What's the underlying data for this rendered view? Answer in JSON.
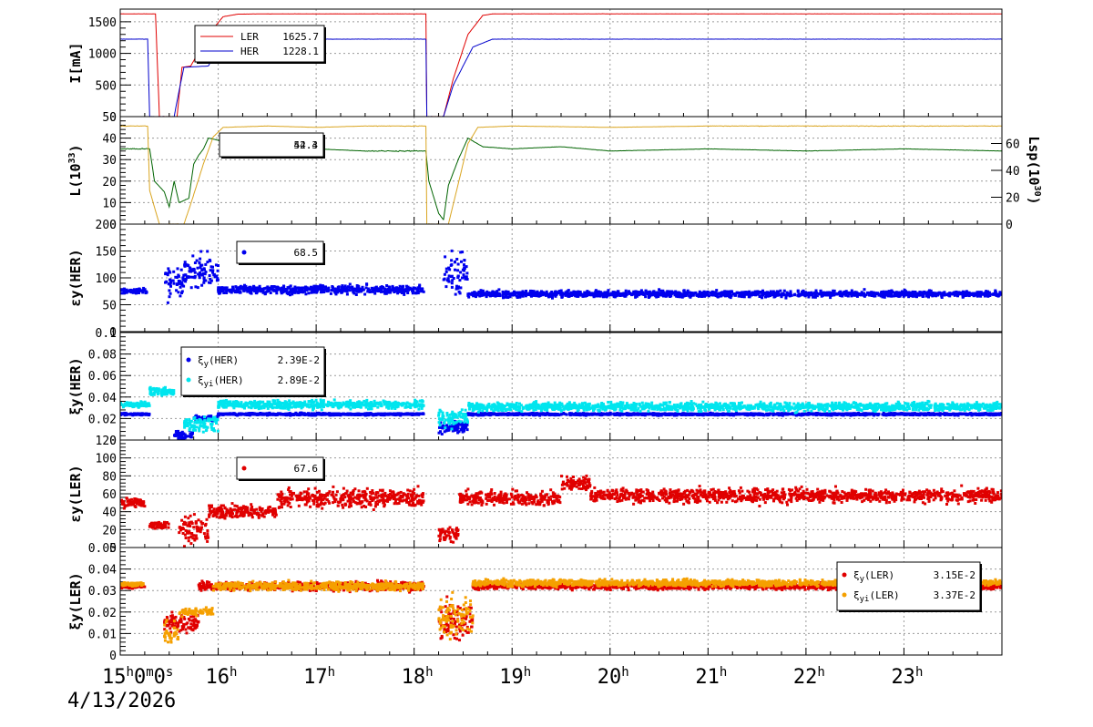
{
  "x_axis": {
    "start_label": "15h0m0s",
    "date_label": "4/13/2026",
    "hour_labels": [
      "16h",
      "17h",
      "18h",
      "19h",
      "20h",
      "21h",
      "22h",
      "23h"
    ]
  },
  "chart_data": [
    {
      "type": "line",
      "ylabel": "I[mA]",
      "ylim": [
        0,
        1700
      ],
      "yticks": [
        "0",
        "500",
        "1000",
        "1500"
      ],
      "grid": true,
      "legend": [
        {
          "name": "LER",
          "value": "1625.7",
          "color": "#e00000"
        },
        {
          "name": "HER",
          "value": "1228.1",
          "color": "#0000cc"
        }
      ],
      "series": [
        {
          "name": "LER",
          "color": "#e00000",
          "points": [
            [
              15.0,
              1625
            ],
            [
              15.3,
              1625
            ],
            [
              15.36,
              1625
            ],
            [
              15.4,
              0
            ],
            [
              15.58,
              0
            ],
            [
              15.63,
              780
            ],
            [
              15.72,
              800
            ],
            [
              15.9,
              1300
            ],
            [
              16.05,
              1580
            ],
            [
              16.2,
              1620
            ],
            [
              16.5,
              1625
            ],
            [
              17.0,
              1625
            ],
            [
              18.0,
              1625
            ],
            [
              18.12,
              1625
            ],
            [
              18.13,
              0
            ],
            [
              18.3,
              0
            ],
            [
              18.4,
              600
            ],
            [
              18.55,
              1300
            ],
            [
              18.7,
              1600
            ],
            [
              18.8,
              1625
            ],
            [
              24.0,
              1625
            ]
          ]
        },
        {
          "name": "HER",
          "color": "#0000cc",
          "points": [
            [
              15.0,
              1225
            ],
            [
              15.28,
              1225
            ],
            [
              15.3,
              0
            ],
            [
              15.55,
              0
            ],
            [
              15.6,
              400
            ],
            [
              15.65,
              780
            ],
            [
              15.9,
              800
            ],
            [
              16.0,
              1100
            ],
            [
              16.1,
              1200
            ],
            [
              16.3,
              1225
            ],
            [
              18.12,
              1225
            ],
            [
              18.13,
              0
            ],
            [
              18.3,
              0
            ],
            [
              18.4,
              500
            ],
            [
              18.6,
              1100
            ],
            [
              18.8,
              1225
            ],
            [
              24.0,
              1225
            ]
          ]
        }
      ]
    },
    {
      "type": "line",
      "ylabel": "L(10^33)",
      "ylabel_right": "Lsp(10^30)",
      "ylim": [
        0,
        50
      ],
      "ylim_right": [
        0,
        80
      ],
      "yticks": [
        "0",
        "10",
        "20",
        "30",
        "40",
        "50"
      ],
      "yticks_right": [
        "0",
        "20",
        "40",
        "60"
      ],
      "grid": true,
      "legend_value": "52.3",
      "legend_value_overlap": "44.4",
      "series": [
        {
          "name": "L",
          "color": "#006400",
          "axis": "left",
          "points": [
            [
              15.0,
              35
            ],
            [
              15.3,
              35
            ],
            [
              15.35,
              20
            ],
            [
              15.45,
              15
            ],
            [
              15.5,
              8
            ],
            [
              15.55,
              20
            ],
            [
              15.6,
              10
            ],
            [
              15.7,
              12
            ],
            [
              15.75,
              28
            ],
            [
              15.8,
              32
            ],
            [
              15.85,
              35
            ],
            [
              15.9,
              40
            ],
            [
              16.1,
              38
            ],
            [
              16.5,
              35
            ],
            [
              17.0,
              35
            ],
            [
              17.5,
              34
            ],
            [
              18.0,
              34
            ],
            [
              18.12,
              34
            ],
            [
              18.15,
              20
            ],
            [
              18.25,
              5
            ],
            [
              18.3,
              2
            ],
            [
              18.35,
              18
            ],
            [
              18.45,
              30
            ],
            [
              18.55,
              40
            ],
            [
              18.7,
              36
            ],
            [
              19.0,
              35
            ],
            [
              19.5,
              36
            ],
            [
              20.0,
              34
            ],
            [
              21.0,
              35
            ],
            [
              22.0,
              34
            ],
            [
              23.0,
              35
            ],
            [
              24.0,
              34
            ]
          ]
        },
        {
          "name": "Lsp",
          "color": "#daa520",
          "axis": "right",
          "points": [
            [
              15.0,
              73
            ],
            [
              15.28,
              73
            ],
            [
              15.3,
              25
            ],
            [
              15.4,
              0
            ],
            [
              15.65,
              0
            ],
            [
              15.72,
              15
            ],
            [
              15.85,
              45
            ],
            [
              15.95,
              65
            ],
            [
              16.05,
              72
            ],
            [
              16.5,
              73
            ],
            [
              17.0,
              72
            ],
            [
              17.5,
              73
            ],
            [
              18.0,
              73
            ],
            [
              18.12,
              73
            ],
            [
              18.13,
              0
            ],
            [
              18.35,
              0
            ],
            [
              18.45,
              30
            ],
            [
              18.55,
              60
            ],
            [
              18.65,
              72
            ],
            [
              19.0,
              73
            ],
            [
              20.0,
              72
            ],
            [
              21.0,
              73
            ],
            [
              22.0,
              73
            ],
            [
              23.0,
              73
            ],
            [
              24.0,
              73
            ]
          ]
        }
      ]
    },
    {
      "type": "scatter",
      "ylabel": "εy(HER)",
      "ylim": [
        0,
        200
      ],
      "yticks": [
        "0",
        "50",
        "100",
        "150",
        "200"
      ],
      "grid": true,
      "legend": [
        {
          "name": "",
          "value": "68.5",
          "color": "#0000ee"
        }
      ],
      "series": [
        {
          "name": "εy(HER)",
          "color": "#0000ee",
          "segments": [
            {
              "x": [
                15.0,
                15.28
              ],
              "y": 75,
              "noise": 5
            },
            {
              "x": [
                15.45,
                15.65
              ],
              "y": 90,
              "noise": 30
            },
            {
              "x": [
                15.65,
                16.0
              ],
              "y": 110,
              "noise": 30
            },
            {
              "x": [
                16.0,
                18.1
              ],
              "y": 78,
              "noise": 8
            },
            {
              "x": [
                18.3,
                18.55
              ],
              "y": 110,
              "noise": 40
            },
            {
              "x": [
                18.55,
                24.0
              ],
              "y": 70,
              "noise": 6
            }
          ]
        }
      ]
    },
    {
      "type": "scatter",
      "ylabel": "ξy(HER)",
      "ylim": [
        0,
        0.1
      ],
      "yticks": [
        "0",
        "0.02",
        "0.04",
        "0.06",
        "0.08",
        "0.1"
      ],
      "grid": true,
      "legend": [
        {
          "name": "ξy(HER)",
          "value": "2.39E-2",
          "color": "#0000ee"
        },
        {
          "name": "ξyi(HER)",
          "value": "2.89E-2",
          "color": "#00e5ee"
        }
      ],
      "series": [
        {
          "name": "ξy(HER)",
          "color": "#0000ee",
          "segments": [
            {
              "x": [
                15.0,
                15.3
              ],
              "y": 0.024,
              "noise": 0.001
            },
            {
              "x": [
                15.55,
                15.75
              ],
              "y": 0.005,
              "noise": 0.004
            },
            {
              "x": [
                15.75,
                16.0
              ],
              "y": 0.02,
              "noise": 0.003
            },
            {
              "x": [
                16.0,
                18.1
              ],
              "y": 0.024,
              "noise": 0.001
            },
            {
              "x": [
                18.25,
                18.55
              ],
              "y": 0.012,
              "noise": 0.006
            },
            {
              "x": [
                18.55,
                24.0
              ],
              "y": 0.024,
              "noise": 0.001
            }
          ]
        },
        {
          "name": "ξyi(HER)",
          "color": "#00e5ee",
          "segments": [
            {
              "x": [
                15.0,
                15.3
              ],
              "y": 0.033,
              "noise": 0.003
            },
            {
              "x": [
                15.3,
                15.55
              ],
              "y": 0.045,
              "noise": 0.004
            },
            {
              "x": [
                15.65,
                16.0
              ],
              "y": 0.015,
              "noise": 0.008
            },
            {
              "x": [
                16.0,
                18.1
              ],
              "y": 0.033,
              "noise": 0.004
            },
            {
              "x": [
                18.25,
                18.55
              ],
              "y": 0.02,
              "noise": 0.01
            },
            {
              "x": [
                18.55,
                24.0
              ],
              "y": 0.031,
              "noise": 0.004
            }
          ]
        }
      ]
    },
    {
      "type": "scatter",
      "ylabel": "εy(LER)",
      "ylim": [
        0,
        120
      ],
      "yticks": [
        "0",
        "20",
        "40",
        "60",
        "80",
        "100",
        "120"
      ],
      "grid": true,
      "legend": [
        {
          "name": "",
          "value": "67.6",
          "color": "#e00000"
        }
      ],
      "series": [
        {
          "name": "εy(LER)",
          "color": "#e00000",
          "segments": [
            {
              "x": [
                15.0,
                15.25
              ],
              "y": 50,
              "noise": 6
            },
            {
              "x": [
                15.3,
                15.5
              ],
              "y": 25,
              "noise": 4
            },
            {
              "x": [
                15.6,
                15.9
              ],
              "y": 20,
              "noise": 15
            },
            {
              "x": [
                15.9,
                16.6
              ],
              "y": 40,
              "noise": 8
            },
            {
              "x": [
                16.6,
                18.1
              ],
              "y": 55,
              "noise": 10
            },
            {
              "x": [
                18.25,
                18.45
              ],
              "y": 15,
              "noise": 10
            },
            {
              "x": [
                18.45,
                19.5
              ],
              "y": 55,
              "noise": 8
            },
            {
              "x": [
                19.5,
                19.8
              ],
              "y": 72,
              "noise": 8
            },
            {
              "x": [
                19.8,
                24.0
              ],
              "y": 58,
              "noise": 8
            }
          ]
        }
      ]
    },
    {
      "type": "scatter",
      "ylabel": "ξy(LER)",
      "ylim": [
        0,
        0.05
      ],
      "yticks": [
        "0",
        "0.01",
        "0.02",
        "0.03",
        "0.04",
        "0.05"
      ],
      "grid": true,
      "legend": [
        {
          "name": "ξy(LER)",
          "value": "3.15E-2",
          "color": "#e00000"
        },
        {
          "name": "ξyi(LER)",
          "value": "3.37E-2",
          "color": "#f5a000"
        }
      ],
      "series": [
        {
          "name": "ξy(LER)",
          "color": "#e00000",
          "segments": [
            {
              "x": [
                15.0,
                15.25
              ],
              "y": 0.032,
              "noise": 0.001
            },
            {
              "x": [
                15.45,
                15.8
              ],
              "y": 0.015,
              "noise": 0.005
            },
            {
              "x": [
                15.8,
                18.1
              ],
              "y": 0.032,
              "noise": 0.002
            },
            {
              "x": [
                18.25,
                18.6
              ],
              "y": 0.016,
              "noise": 0.009
            },
            {
              "x": [
                18.6,
                24.0
              ],
              "y": 0.032,
              "noise": 0.0015
            }
          ]
        },
        {
          "name": "ξyi(LER)",
          "color": "#f5a000",
          "segments": [
            {
              "x": [
                15.0,
                15.25
              ],
              "y": 0.033,
              "noise": 0.001
            },
            {
              "x": [
                15.45,
                15.6
              ],
              "y": 0.01,
              "noise": 0.006
            },
            {
              "x": [
                15.6,
                15.95
              ],
              "y": 0.02,
              "noise": 0.002
            },
            {
              "x": [
                15.95,
                18.1
              ],
              "y": 0.032,
              "noise": 0.002
            },
            {
              "x": [
                18.25,
                18.6
              ],
              "y": 0.018,
              "noise": 0.01
            },
            {
              "x": [
                18.6,
                24.0
              ],
              "y": 0.0335,
              "noise": 0.0015
            }
          ]
        }
      ]
    }
  ]
}
